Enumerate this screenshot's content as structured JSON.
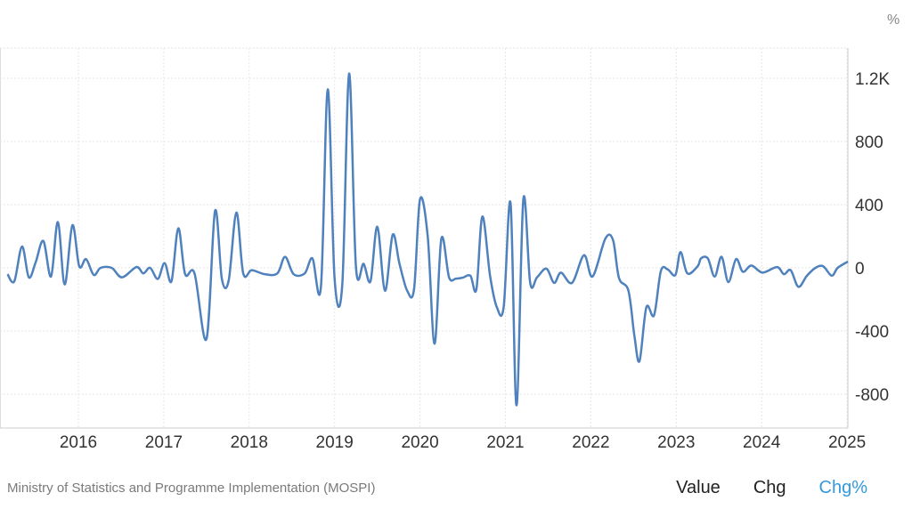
{
  "unit_label": "%",
  "source": "Ministry of Statistics and Programme Implementation (MOSPI)",
  "view_tabs": [
    {
      "label": "Value",
      "active": false
    },
    {
      "label": "Chg",
      "active": false
    },
    {
      "label": "Chg%",
      "active": true
    }
  ],
  "colors": {
    "line": "#4f81bd",
    "active_tab": "#3399dd",
    "grid": "#e6e6e6"
  },
  "chart_data": {
    "type": "line",
    "title": "",
    "xlabel": "",
    "ylabel": "%",
    "xlim": [
      2015.17,
      2025.01
    ],
    "ylim": [
      -1000,
      1400
    ],
    "grid": true,
    "y_axis_side": "right",
    "x_ticks": [
      2016,
      2017,
      2018,
      2019,
      2020,
      2021,
      2022,
      2023,
      2024,
      2025
    ],
    "x_tick_labels": [
      "2016",
      "2017",
      "2018",
      "2019",
      "2020",
      "2021",
      "2022",
      "2023",
      "2024",
      "2025"
    ],
    "y_ticks": [
      -800,
      -400,
      0,
      400,
      800,
      1200
    ],
    "y_tick_labels": [
      "-800",
      "-400",
      "0",
      "400",
      "800",
      "1.2K"
    ],
    "series": [
      {
        "x": [
          2015.17,
          2015.25,
          2015.34,
          2015.42,
          2015.5,
          2015.59,
          2015.68,
          2015.76,
          2015.84,
          2015.93,
          2016.01,
          2016.09,
          2016.18,
          2016.26,
          2016.39,
          2016.51,
          2016.68,
          2016.76,
          2016.84,
          2016.93,
          2017.01,
          2017.09,
          2017.17,
          2017.25,
          2017.36,
          2017.5,
          2017.6,
          2017.68,
          2017.76,
          2017.85,
          2017.93,
          2018.03,
          2018.18,
          2018.33,
          2018.42,
          2018.52,
          2018.65,
          2018.74,
          2018.84,
          2018.92,
          2019.0,
          2019.09,
          2019.17,
          2019.25,
          2019.34,
          2019.42,
          2019.5,
          2019.59,
          2019.68,
          2019.76,
          2019.85,
          2019.93,
          2020.0,
          2020.09,
          2020.17,
          2020.25,
          2020.34,
          2020.42,
          2020.5,
          2020.59,
          2020.66,
          2020.73,
          2020.82,
          2020.9,
          2020.98,
          2021.06,
          2021.13,
          2021.21,
          2021.29,
          2021.37,
          2021.48,
          2021.57,
          2021.65,
          2021.78,
          2021.92,
          2022.02,
          2022.17,
          2022.26,
          2022.33,
          2022.44,
          2022.51,
          2022.57,
          2022.65,
          2022.74,
          2022.82,
          2022.9,
          2022.99,
          2023.05,
          2023.13,
          2023.25,
          2023.29,
          2023.37,
          2023.45,
          2023.53,
          2023.61,
          2023.7,
          2023.78,
          2023.88,
          2024.01,
          2024.18,
          2024.26,
          2024.34,
          2024.43,
          2024.53,
          2024.63,
          2024.72,
          2024.82,
          2024.89,
          2025.01
        ],
        "y": [
          -40,
          -85,
          135,
          -60,
          35,
          170,
          -55,
          290,
          -105,
          270,
          10,
          55,
          -45,
          0,
          0,
          -60,
          5,
          -35,
          0,
          -70,
          30,
          -85,
          250,
          -40,
          -35,
          -450,
          360,
          -70,
          -80,
          350,
          -35,
          -15,
          -40,
          -35,
          70,
          -40,
          -35,
          60,
          -120,
          1130,
          -70,
          -105,
          1230,
          5,
          25,
          -85,
          260,
          -145,
          210,
          25,
          -145,
          -135,
          435,
          200,
          -480,
          185,
          -60,
          -68,
          -62,
          -50,
          -135,
          325,
          -50,
          -250,
          -245,
          410,
          -870,
          435,
          -95,
          -60,
          -5,
          -95,
          -30,
          -95,
          80,
          -55,
          185,
          175,
          -65,
          -145,
          -430,
          -590,
          -250,
          -300,
          -20,
          -10,
          -45,
          100,
          -35,
          10,
          60,
          60,
          -55,
          70,
          -90,
          55,
          -25,
          15,
          -30,
          5,
          -40,
          -15,
          -120,
          -50,
          0,
          10,
          -50,
          0,
          40
        ]
      }
    ]
  }
}
